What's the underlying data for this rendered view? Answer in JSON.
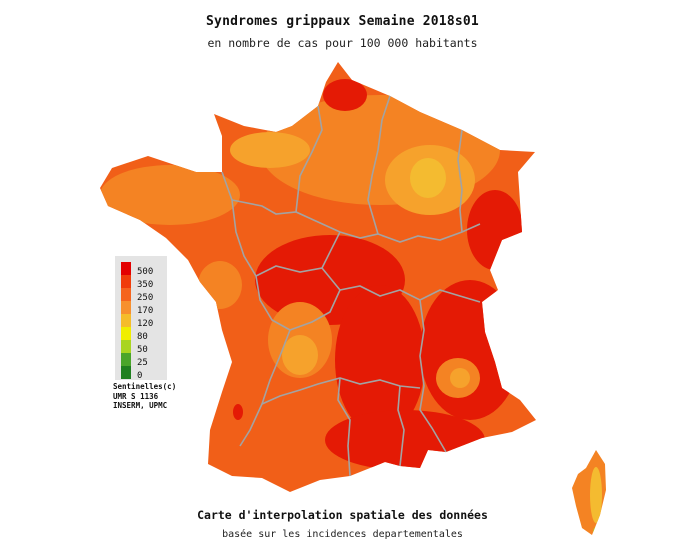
{
  "title": "Syndromes grippaux Semaine 2018s01",
  "subtitle": "en nombre de cas pour 100 000 habitants",
  "footer": {
    "title": "Carte d'interpolation spatiale des données",
    "subtitle": "basée sur les incidences departementales"
  },
  "legend": {
    "items": [
      {
        "label": "500",
        "color": "#e30000"
      },
      {
        "label": "350",
        "color": "#f03c0a"
      },
      {
        "label": "250",
        "color": "#f5641e"
      },
      {
        "label": "170",
        "color": "#f7902e"
      },
      {
        "label": "120",
        "color": "#f5bc2a"
      },
      {
        "label": "80",
        "color": "#f0ee00"
      },
      {
        "label": "50",
        "color": "#a9d520"
      },
      {
        "label": "25",
        "color": "#4aa52a"
      },
      {
        "label": "0",
        "color": "#1f7f1f"
      }
    ],
    "credits": [
      "Sentinelles(c)",
      "UMR S 1136",
      "INSERM, UPMC"
    ]
  },
  "map_colors": {
    "base": "#f15f18",
    "high": "#e41a05",
    "mid": "#f48323",
    "low": "#f6a22c",
    "lowest": "#f4bb30",
    "borders": "#a3a3a3"
  }
}
